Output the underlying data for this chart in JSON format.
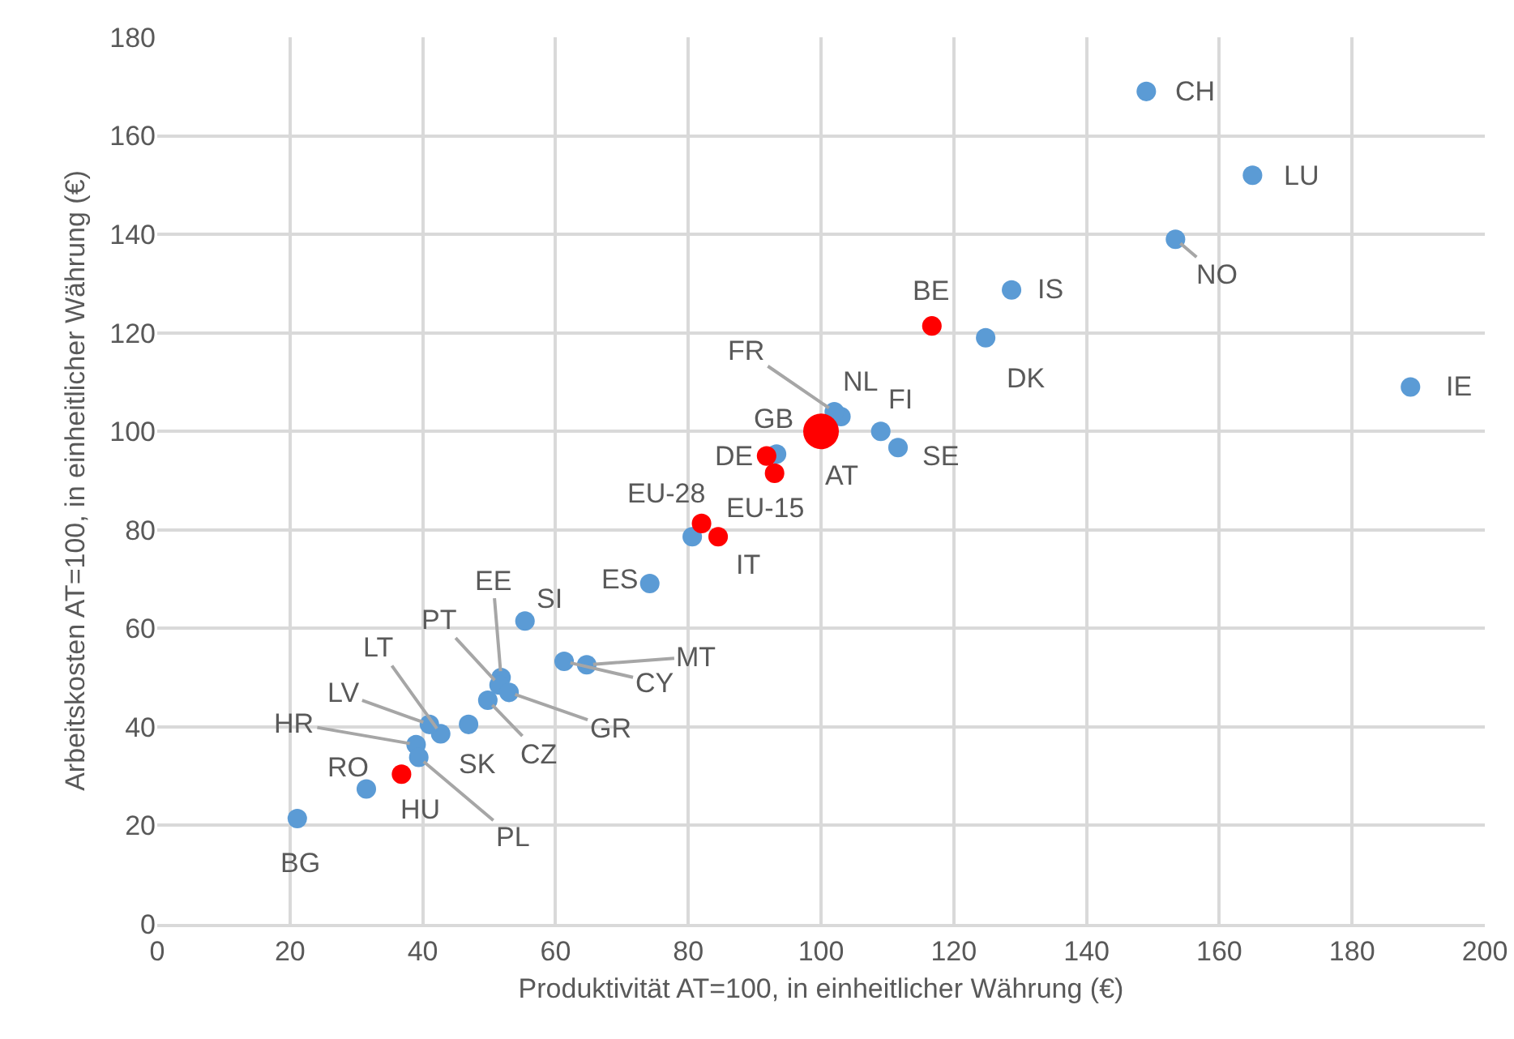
{
  "chart_data": {
    "type": "bubble",
    "xlabel": "Produktivität AT=100, in einheitlicher Währung (€)",
    "ylabel": "Arbeitskosten AT=100, in einheitlicher Währung (€)",
    "xlim": [
      0,
      200
    ],
    "xticks": [
      0,
      20,
      40,
      60,
      80,
      100,
      120,
      140,
      160,
      180,
      200
    ],
    "ylim": [
      0,
      180
    ],
    "yticks": [
      0,
      20,
      40,
      60,
      80,
      100,
      120,
      140,
      160,
      180
    ],
    "grid": true,
    "marker": "circle",
    "series": [
      {
        "color": "#5b9bd5",
        "x": [
          149,
          165,
          153.4,
          128.7,
          124.8,
          188.8,
          103,
          102,
          109,
          111.6,
          93.3,
          80.6,
          74.2,
          55.4,
          64.7,
          61.3,
          51.8,
          51.5,
          53,
          49.8,
          46.9,
          42.7,
          41,
          39,
          39.4,
          31.5,
          21.1
        ],
        "values": [
          169,
          152,
          139,
          128.7,
          119,
          109,
          103,
          104,
          100,
          96.7,
          95.4,
          78.6,
          69.1,
          61.5,
          52.6,
          53.3,
          50,
          48.5,
          47,
          45.4,
          40.5,
          38.6,
          40.5,
          36.4,
          33.8,
          27.4,
          21.4
        ],
        "sizes": [
          0.3,
          0.3,
          0.3,
          0.3,
          0.3,
          0.3,
          0.3,
          0.3,
          0.3,
          0.3,
          0.3,
          0.3,
          0.3,
          0.3,
          0.3,
          0.3,
          0.3,
          0.3,
          0.3,
          0.3,
          0.3,
          0.3,
          0.3,
          0.3,
          0.3,
          0.3,
          0.3
        ]
      },
      {
        "color": "#ff0000",
        "x": [
          116.7,
          100,
          91.8,
          93,
          82,
          84.5,
          36.8
        ],
        "values": [
          121.4,
          100,
          95,
          91.5,
          81.3,
          78.6,
          30.4
        ],
        "sizes": [
          0.3,
          1,
          0.3,
          0.3,
          0.3,
          0.3,
          0.3
        ]
      }
    ],
    "annotations": [
      {
        "text": "CH",
        "x": 149,
        "y": 169
      },
      {
        "text": "LU",
        "x": 165,
        "y": 152
      },
      {
        "text": "NO",
        "x": 153.4,
        "y": 139
      },
      {
        "text": "IS",
        "x": 128.7,
        "y": 128.7
      },
      {
        "text": "BE",
        "x": 116.7,
        "y": 121.4
      },
      {
        "text": "DK",
        "x": 124.8,
        "y": 119
      },
      {
        "text": "IE",
        "x": 188.8,
        "y": 109
      },
      {
        "text": "NL",
        "x": 103,
        "y": 103
      },
      {
        "text": "FR",
        "x": 102,
        "y": 104
      },
      {
        "text": "GB",
        "x": 93.3,
        "y": 95.4
      },
      {
        "text": "SE",
        "x": 111.6,
        "y": 96.7
      },
      {
        "text": "FI",
        "x": 109,
        "y": 100
      },
      {
        "text": "AT",
        "x": 100,
        "y": 100
      },
      {
        "text": "DE",
        "x": 91.8,
        "y": 95
      },
      {
        "text": "EU-15",
        "x": 93,
        "y": 91.5
      },
      {
        "text": "EU-28",
        "x": 82,
        "y": 81.3
      },
      {
        "text": "IT",
        "x": 84.5,
        "y": 78.6
      },
      {
        "text": "ES",
        "x": 74.2,
        "y": 69.1
      },
      {
        "text": "SI",
        "x": 55.4,
        "y": 61.5
      },
      {
        "text": "EE",
        "x": 51.8,
        "y": 50
      },
      {
        "text": "PT",
        "x": 51.5,
        "y": 48.5
      },
      {
        "text": "MT",
        "x": 64.7,
        "y": 52.6
      },
      {
        "text": "CY",
        "x": 61.3,
        "y": 53.3
      },
      {
        "text": "GR",
        "x": 53,
        "y": 47
      },
      {
        "text": "CZ",
        "x": 49.8,
        "y": 45.4
      },
      {
        "text": "SK",
        "x": 46.9,
        "y": 40.5
      },
      {
        "text": "LT",
        "x": 42.7,
        "y": 38.6
      },
      {
        "text": "LV",
        "x": 41,
        "y": 40.5
      },
      {
        "text": "HR",
        "x": 39,
        "y": 36.4
      },
      {
        "text": "PL",
        "x": 39.4,
        "y": 33.8
      },
      {
        "text": "HU",
        "x": 36.8,
        "y": 30.4
      },
      {
        "text": "RO",
        "x": 31.5,
        "y": 27.4
      },
      {
        "text": "BG",
        "x": 21.1,
        "y": 21.4
      }
    ]
  }
}
